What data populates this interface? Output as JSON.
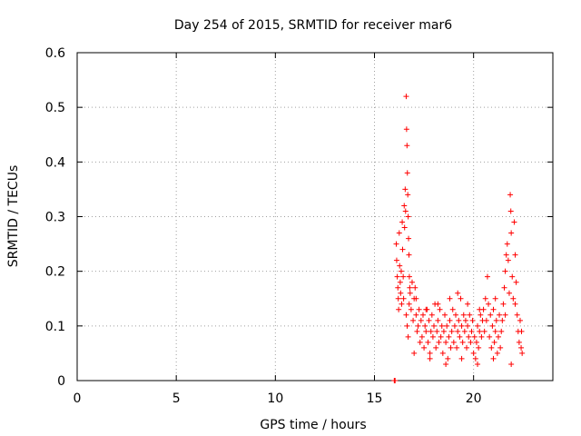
{
  "chart_data": {
    "type": "scatter",
    "title": "Day 254 of 2015, SRMTID for receiver mar6",
    "xlabel": "GPS time / hours",
    "ylabel": "SRMTID / TECUs",
    "xlim": [
      0,
      24
    ],
    "ylim": [
      0,
      0.6
    ],
    "xticks": [
      0,
      5,
      10,
      15,
      20
    ],
    "yticks": [
      0,
      0.1,
      0.2,
      0.3,
      0.4,
      0.5,
      0.6
    ],
    "xtick_labels": [
      "0",
      "5",
      "10",
      "15",
      "20"
    ],
    "ytick_labels": [
      "0",
      "0.1",
      "0.2",
      "0.3",
      "0.4",
      "0.5",
      "0.6"
    ],
    "grid": true,
    "marker": "+",
    "color": "#ff0000",
    "series": [
      {
        "name": "SRMTID",
        "points": [
          [
            16.0,
            0.0
          ],
          [
            16.02,
            0.0
          ],
          [
            16.04,
            0.0
          ],
          [
            16.1,
            0.25
          ],
          [
            16.12,
            0.22
          ],
          [
            16.15,
            0.19
          ],
          [
            16.18,
            0.17
          ],
          [
            16.2,
            0.15
          ],
          [
            16.22,
            0.13
          ],
          [
            16.25,
            0.27
          ],
          [
            16.27,
            0.21
          ],
          [
            16.3,
            0.18
          ],
          [
            16.32,
            0.16
          ],
          [
            16.35,
            0.2
          ],
          [
            16.37,
            0.14
          ],
          [
            16.4,
            0.29
          ],
          [
            16.42,
            0.24
          ],
          [
            16.45,
            0.19
          ],
          [
            16.47,
            0.15
          ],
          [
            16.5,
            0.32
          ],
          [
            16.52,
            0.28
          ],
          [
            16.55,
            0.35
          ],
          [
            16.57,
            0.31
          ],
          [
            16.6,
            0.52
          ],
          [
            16.62,
            0.46
          ],
          [
            16.64,
            0.43
          ],
          [
            16.66,
            0.38
          ],
          [
            16.68,
            0.34
          ],
          [
            16.7,
            0.3
          ],
          [
            16.72,
            0.26
          ],
          [
            16.74,
            0.23
          ],
          [
            16.76,
            0.19
          ],
          [
            16.78,
            0.17
          ],
          [
            16.6,
            0.12
          ],
          [
            16.65,
            0.1
          ],
          [
            16.7,
            0.08
          ],
          [
            16.75,
            0.14
          ],
          [
            16.8,
            0.16
          ],
          [
            16.85,
            0.13
          ],
          [
            16.9,
            0.18
          ],
          [
            16.95,
            0.11
          ],
          [
            17.0,
            0.15
          ],
          [
            17.05,
            0.17
          ],
          [
            17.1,
            0.12
          ],
          [
            17.15,
            0.09
          ],
          [
            17.2,
            0.1
          ],
          [
            17.25,
            0.13
          ],
          [
            17.3,
            0.07
          ],
          [
            17.35,
            0.11
          ],
          [
            17.4,
            0.08
          ],
          [
            17.45,
            0.12
          ],
          [
            17.5,
            0.06
          ],
          [
            17.55,
            0.1
          ],
          [
            17.6,
            0.09
          ],
          [
            17.65,
            0.13
          ],
          [
            17.7,
            0.07
          ],
          [
            17.75,
            0.11
          ],
          [
            17.8,
            0.05
          ],
          [
            17.85,
            0.09
          ],
          [
            17.9,
            0.12
          ],
          [
            17.95,
            0.08
          ],
          [
            18.0,
            0.1
          ],
          [
            18.05,
            0.14
          ],
          [
            18.1,
            0.06
          ],
          [
            18.15,
            0.09
          ],
          [
            18.2,
            0.11
          ],
          [
            18.25,
            0.07
          ],
          [
            18.3,
            0.13
          ],
          [
            18.35,
            0.08
          ],
          [
            18.4,
            0.1
          ],
          [
            18.45,
            0.05
          ],
          [
            18.5,
            0.09
          ],
          [
            18.55,
            0.12
          ],
          [
            18.6,
            0.07
          ],
          [
            18.65,
            0.1
          ],
          [
            18.7,
            0.04
          ],
          [
            18.75,
            0.08
          ],
          [
            18.8,
            0.11
          ],
          [
            18.85,
            0.06
          ],
          [
            18.9,
            0.09
          ],
          [
            18.95,
            0.13
          ],
          [
            19.0,
            0.07
          ],
          [
            19.05,
            0.1
          ],
          [
            19.1,
            0.12
          ],
          [
            19.15,
            0.06
          ],
          [
            19.2,
            0.09
          ],
          [
            19.25,
            0.11
          ],
          [
            19.3,
            0.08
          ],
          [
            19.35,
            0.15
          ],
          [
            19.4,
            0.1
          ],
          [
            19.45,
            0.07
          ],
          [
            19.5,
            0.12
          ],
          [
            19.55,
            0.09
          ],
          [
            19.6,
            0.11
          ],
          [
            19.65,
            0.06
          ],
          [
            19.7,
            0.1
          ],
          [
            19.75,
            0.08
          ],
          [
            19.8,
            0.12
          ],
          [
            19.85,
            0.07
          ],
          [
            19.9,
            0.09
          ],
          [
            19.95,
            0.11
          ],
          [
            20.0,
            0.05
          ],
          [
            20.05,
            0.08
          ],
          [
            20.1,
            0.04
          ],
          [
            20.15,
            0.07
          ],
          [
            20.2,
            0.1
          ],
          [
            20.25,
            0.06
          ],
          [
            20.3,
            0.09
          ],
          [
            20.35,
            0.12
          ],
          [
            20.4,
            0.08
          ],
          [
            20.45,
            0.11
          ],
          [
            20.5,
            0.13
          ],
          [
            20.55,
            0.09
          ],
          [
            20.6,
            0.15
          ],
          [
            20.65,
            0.11
          ],
          [
            20.7,
            0.19
          ],
          [
            20.75,
            0.14
          ],
          [
            20.8,
            0.08
          ],
          [
            20.85,
            0.12
          ],
          [
            20.9,
            0.06
          ],
          [
            20.95,
            0.1
          ],
          [
            21.0,
            0.13
          ],
          [
            21.05,
            0.07
          ],
          [
            21.1,
            0.09
          ],
          [
            21.15,
            0.11
          ],
          [
            21.2,
            0.05
          ],
          [
            21.25,
            0.08
          ],
          [
            21.3,
            0.12
          ],
          [
            21.35,
            0.06
          ],
          [
            21.4,
            0.09
          ],
          [
            21.45,
            0.11
          ],
          [
            21.5,
            0.14
          ],
          [
            21.55,
            0.17
          ],
          [
            21.6,
            0.2
          ],
          [
            21.65,
            0.23
          ],
          [
            21.7,
            0.25
          ],
          [
            21.75,
            0.22
          ],
          [
            21.8,
            0.16
          ],
          [
            21.85,
            0.34
          ],
          [
            21.88,
            0.31
          ],
          [
            21.9,
            0.27
          ],
          [
            21.95,
            0.19
          ],
          [
            22.0,
            0.15
          ],
          [
            22.05,
            0.29
          ],
          [
            22.1,
            0.23
          ],
          [
            22.15,
            0.18
          ],
          [
            22.2,
            0.12
          ],
          [
            22.25,
            0.09
          ],
          [
            22.3,
            0.07
          ],
          [
            22.35,
            0.11
          ],
          [
            22.4,
            0.06
          ],
          [
            22.42,
            0.09
          ],
          [
            22.45,
            0.05
          ],
          [
            17.1,
            0.15
          ],
          [
            17.6,
            0.13
          ],
          [
            18.2,
            0.14
          ],
          [
            18.8,
            0.15
          ],
          [
            19.2,
            0.16
          ],
          [
            19.7,
            0.14
          ],
          [
            20.3,
            0.13
          ],
          [
            21.1,
            0.15
          ],
          [
            21.6,
            0.12
          ],
          [
            22.1,
            0.14
          ],
          [
            17.0,
            0.05
          ],
          [
            17.8,
            0.04
          ],
          [
            18.6,
            0.03
          ],
          [
            19.4,
            0.04
          ],
          [
            20.2,
            0.03
          ],
          [
            21.0,
            0.04
          ],
          [
            21.9,
            0.03
          ]
        ]
      }
    ]
  }
}
